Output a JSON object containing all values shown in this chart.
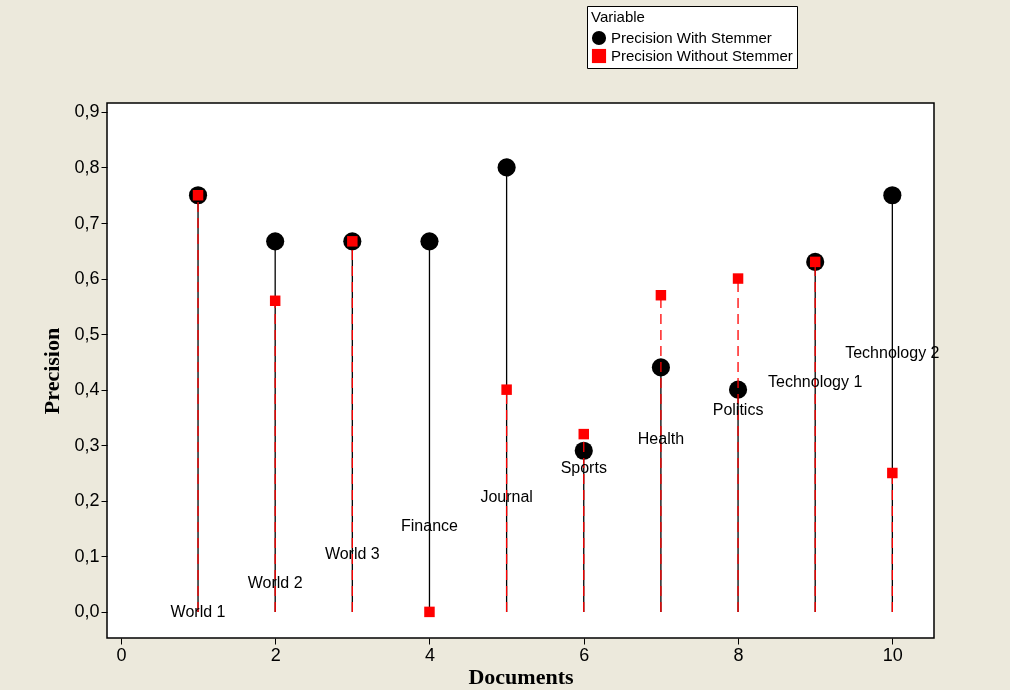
{
  "chart_data": {
    "type": "lollipop",
    "xlabel": "Documents",
    "ylabel": "Precision",
    "legend_title": "Variable",
    "legend": "top right",
    "x": [
      1,
      2,
      3,
      4,
      5,
      6,
      7,
      8,
      9,
      10
    ],
    "series": [
      {
        "name": "Precision With Stemmer",
        "color": "#000000",
        "marker": "circle",
        "line_style": "solid",
        "values": [
          0.75,
          0.667,
          0.667,
          0.667,
          0.8,
          0.29,
          0.44,
          0.4,
          0.63,
          0.75
        ]
      },
      {
        "name": "Precision Without Stemmer",
        "color": "#ff0000",
        "marker": "square",
        "line_style": "dashed",
        "values": [
          0.75,
          0.56,
          0.667,
          0.0,
          0.4,
          0.32,
          0.57,
          0.6,
          0.63,
          0.25
        ]
      }
    ],
    "xlim": [
      -0.18,
      10.54
    ],
    "ylim": [
      -0.047,
      0.916
    ],
    "xticks": [
      0,
      2,
      4,
      6,
      8,
      10
    ],
    "yticks": [
      {
        "value": 0,
        "label": "0,0"
      },
      {
        "value": 0.1,
        "label": "0,1"
      },
      {
        "value": 0.2,
        "label": "0,2"
      },
      {
        "value": 0.3,
        "label": "0,3"
      },
      {
        "value": 0.4,
        "label": "0,4"
      },
      {
        "value": 0.5,
        "label": "0,5"
      },
      {
        "value": 0.6,
        "label": "0,6"
      },
      {
        "value": 0.7,
        "label": "0,7"
      },
      {
        "value": 0.8,
        "label": "0,8"
      },
      {
        "value": 0.9,
        "label": "0,9"
      }
    ],
    "annotations": [
      "World 1",
      "World 2",
      "World 3",
      "Finance",
      "Journal",
      "Sports",
      "Health",
      "Politics",
      "Technology 1",
      "Technology 2"
    ]
  }
}
